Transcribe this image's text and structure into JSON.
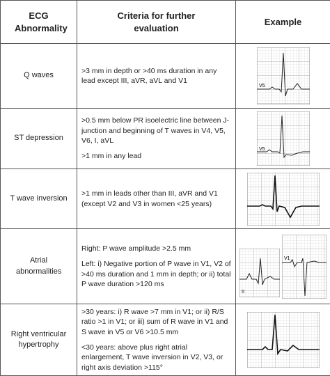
{
  "table": {
    "header": [
      "ECG Abnormality",
      "Criteria for further evaluation",
      "Example"
    ],
    "rows": [
      {
        "name": "Q waves",
        "criteria": [
          ">3 mm in depth or >40 ms duration in any lead except III, aVR, aVL and V1"
        ],
        "image_labels": [
          "V5"
        ]
      },
      {
        "name": "ST depression",
        "criteria": [
          ">0.5 mm below PR isoelectric line between J-junction and beginning of T waves in V4, V5, V6, I, aVL",
          ">1 mm in any lead"
        ],
        "image_labels": [
          "V5"
        ]
      },
      {
        "name": "T wave inversion",
        "criteria": [
          ">1 mm in leads other than III, aVR and V1 (except V2 and V3 in women <25 years)"
        ],
        "image_labels": []
      },
      {
        "name": "Atrial abnormalities",
        "criteria": [
          "Right: P wave amplitude >2.5 mm",
          "Left: i) Negative portion of P wave in V1, V2 of >40 ms duration and 1 mm in depth; or ii) total P wave duration >120 ms"
        ],
        "image_labels": [
          "II",
          "V1"
        ]
      },
      {
        "name": "Right ventricular hypertrophy",
        "criteria": [
          ">30 years: i) R wave >7 mm in V1; or ii) R/S ratio >1 in V1; or iii) sum of R wave in V1 and S wave in V5 or V6 >10.5 mm",
          "<30 years: above plus right atrial enlargement, T wave inversion in V2, V3, or right axis deviation >115°"
        ],
        "image_labels": []
      }
    ]
  }
}
